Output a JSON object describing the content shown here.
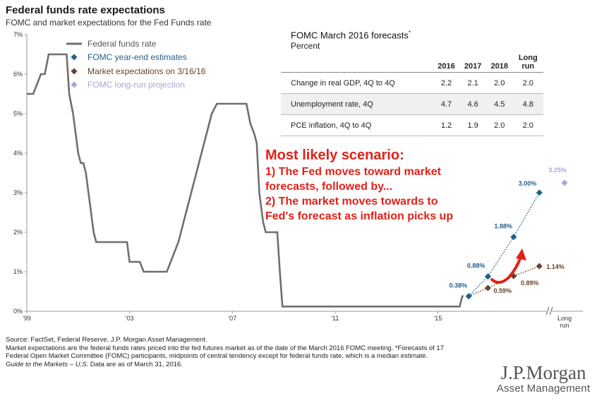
{
  "header": {
    "title": "Federal funds rate expectations",
    "subtitle": "FOMC and market expectations for the Fed Funds rate"
  },
  "chart_data": {
    "type": "line",
    "ylim": [
      0,
      7
    ],
    "yticks": [
      "0%",
      "1%",
      "2%",
      "3%",
      "4%",
      "5%",
      "6%",
      "7%"
    ],
    "xticks": [
      "'99",
      "'03",
      "'07",
      "'11",
      "'15"
    ],
    "long_run_label": "Long run",
    "legend_position": "top-left",
    "grid": false,
    "colors": {
      "fed_funds": "#6f6f6f",
      "fomc": "#1f5f8b",
      "market": "#6b4226",
      "long_run": "#a9a6d8"
    },
    "series": [
      {
        "name": "Federal funds rate",
        "points": [
          [
            1999.0,
            5.5
          ],
          [
            1999.25,
            5.5
          ],
          [
            1999.4,
            5.75
          ],
          [
            1999.55,
            6.0
          ],
          [
            1999.7,
            6.0
          ],
          [
            1999.85,
            6.5
          ],
          [
            2000.0,
            6.5
          ],
          [
            2000.3,
            6.5
          ],
          [
            2000.55,
            6.5
          ],
          [
            2000.65,
            5.5
          ],
          [
            2000.8,
            5.0
          ],
          [
            2000.9,
            4.5
          ],
          [
            2001.0,
            4.0
          ],
          [
            2001.1,
            3.75
          ],
          [
            2001.2,
            3.75
          ],
          [
            2001.3,
            3.5
          ],
          [
            2001.4,
            3.0
          ],
          [
            2001.5,
            2.5
          ],
          [
            2001.6,
            2.0
          ],
          [
            2001.7,
            1.75
          ],
          [
            2002.0,
            1.75
          ],
          [
            2002.5,
            1.75
          ],
          [
            2002.9,
            1.75
          ],
          [
            2003.0,
            1.25
          ],
          [
            2003.4,
            1.25
          ],
          [
            2003.55,
            1.0
          ],
          [
            2004.0,
            1.0
          ],
          [
            2004.45,
            1.0
          ],
          [
            2004.6,
            1.25
          ],
          [
            2004.75,
            1.5
          ],
          [
            2004.9,
            1.75
          ],
          [
            2005.0,
            2.0
          ],
          [
            2005.2,
            2.5
          ],
          [
            2005.4,
            3.0
          ],
          [
            2005.6,
            3.5
          ],
          [
            2005.8,
            4.0
          ],
          [
            2006.0,
            4.5
          ],
          [
            2006.2,
            5.0
          ],
          [
            2006.4,
            5.25
          ],
          [
            2007.0,
            5.25
          ],
          [
            2007.55,
            5.25
          ],
          [
            2007.7,
            4.75
          ],
          [
            2007.85,
            4.5
          ],
          [
            2007.95,
            4.25
          ],
          [
            2008.05,
            3.0
          ],
          [
            2008.2,
            2.25
          ],
          [
            2008.3,
            2.0
          ],
          [
            2008.75,
            2.0
          ],
          [
            2008.85,
            1.0
          ],
          [
            2008.95,
            0.12
          ],
          [
            2010.0,
            0.12
          ],
          [
            2012.0,
            0.12
          ],
          [
            2014.0,
            0.12
          ],
          [
            2015.85,
            0.12
          ],
          [
            2015.95,
            0.38
          ],
          [
            2016.0,
            0.38
          ]
        ]
      },
      {
        "name": "FOMC year-end estimates",
        "points": [
          [
            2016.2,
            0.38
          ],
          [
            2016.95,
            0.88
          ],
          [
            2017.95,
            1.88
          ],
          [
            2018.95,
            3.0
          ]
        ],
        "labels": [
          "0.38%",
          "0.88%",
          "1.88%",
          "3.00%"
        ]
      },
      {
        "name": "Market expectations on 3/16/16",
        "points": [
          [
            2016.2,
            0.38
          ],
          [
            2016.95,
            0.59
          ],
          [
            2017.95,
            0.89
          ],
          [
            2018.95,
            1.14
          ]
        ],
        "labels": [
          "",
          "0.59%",
          "0.89%",
          "1.14%"
        ]
      },
      {
        "name": "FOMC long-run projection",
        "points": [
          [
            "Long run",
            3.25
          ]
        ],
        "labels": [
          "3.25%"
        ]
      }
    ]
  },
  "forecasts": {
    "title": "FOMC March 2016 forecasts",
    "title_mark": "*",
    "subtitle": "Percent",
    "columns": [
      "2016",
      "2017",
      "2018",
      "Long run"
    ],
    "rows": [
      {
        "label": "Change in real GDP, 4Q to 4Q",
        "values": [
          "2.2",
          "2.1",
          "2.0",
          "2.0"
        ]
      },
      {
        "label": "Unemployment rate, 4Q",
        "values": [
          "4.7",
          "4.6",
          "4.5",
          "4.8"
        ]
      },
      {
        "label": "PCE inflation, 4Q to 4Q",
        "values": [
          "1.2",
          "1.9",
          "2.0",
          "2.0"
        ]
      }
    ]
  },
  "scenario": {
    "heading": "Most likely scenario:",
    "lines": [
      "1) The Fed moves toward market",
      "forecasts, followed by...",
      "2) The market moves towards to",
      "Fed's forecast as inflation picks up"
    ]
  },
  "footer": {
    "source": "Source: FactSet, Federal Reserve, J.P. Morgan Asset Management.",
    "note_line1": "Market expectations are the federal funds rates priced into the fed futures market as of the date of the March 2016 FOMC meeting. *Forecasts of 17",
    "note_line2": "Federal Open Market Committee (FOMC) participants, midpoints of central tendency except for federal funds rate, which is a median estimate.",
    "guide_italic": "Guide to the Markets – U.S.",
    "guide_rest": " Data are as of March 31, 2016."
  },
  "logo": {
    "main": "J.P.Morgan",
    "sub": "Asset Management"
  }
}
